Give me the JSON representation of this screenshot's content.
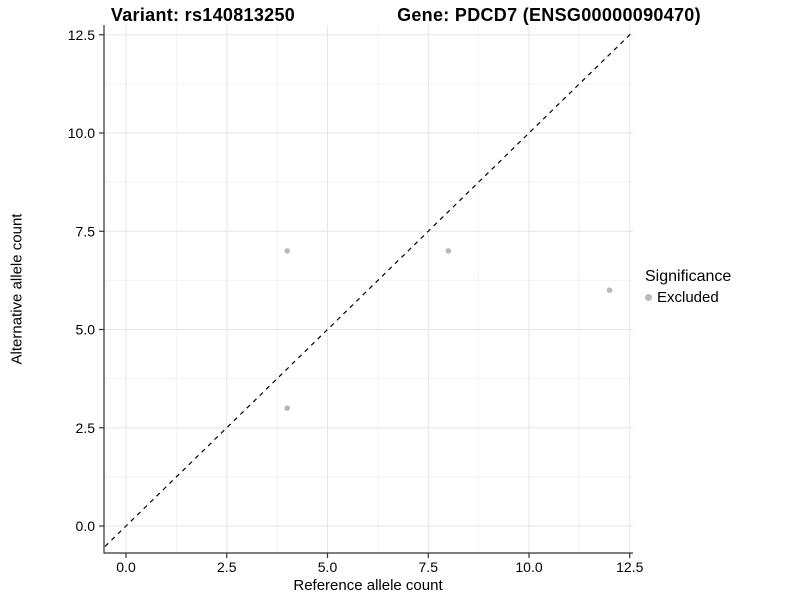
{
  "chart_data": {
    "type": "scatter",
    "title_left": "Variant: rs140813250",
    "title_right": "Gene: PDCD7 (ENSG00000090470)",
    "xlabel": "Reference allele count",
    "ylabel": "Alternative allele count",
    "xlim": [
      0,
      12.5
    ],
    "ylim": [
      0,
      12.5
    ],
    "x_ticks": [
      0,
      2.5,
      5,
      7.5,
      10,
      12.5
    ],
    "x_tick_labels": [
      "0.0",
      "2.5",
      "5.0",
      "7.5",
      "10.0",
      "12.5"
    ],
    "y_ticks": [
      0,
      2.5,
      5,
      7.5,
      10,
      12.5
    ],
    "y_tick_labels": [
      "0.0",
      "2.5",
      "5.0",
      "7.5",
      "10.0",
      "12.5"
    ],
    "x_minor_ticks": [
      1.25,
      3.75,
      6.25,
      8.75,
      11.25
    ],
    "y_minor_ticks": [
      1.25,
      3.75,
      6.25,
      8.75,
      11.25
    ],
    "grid": true,
    "legend_position": "right",
    "identity_line": {
      "equation": "y = x",
      "style": "dashed",
      "color": "#000000"
    },
    "series": [
      {
        "name": "Excluded",
        "color": "#b9b9b9",
        "points": [
          {
            "x": 4,
            "y": 7
          },
          {
            "x": 8,
            "y": 7
          },
          {
            "x": 12,
            "y": 6
          },
          {
            "x": 4,
            "y": 3
          }
        ]
      }
    ],
    "legend": {
      "title": "Significance",
      "items": [
        {
          "label": "Excluded",
          "color": "#b9b9b9"
        }
      ]
    },
    "colors": {
      "background": "#ffffff",
      "grid_major": "#e5e5e5",
      "grid_minor": "#f2f2f2",
      "axis_line": "#333333",
      "tick": "#333333",
      "text": "#000000",
      "point": "#b9b9b9"
    }
  }
}
